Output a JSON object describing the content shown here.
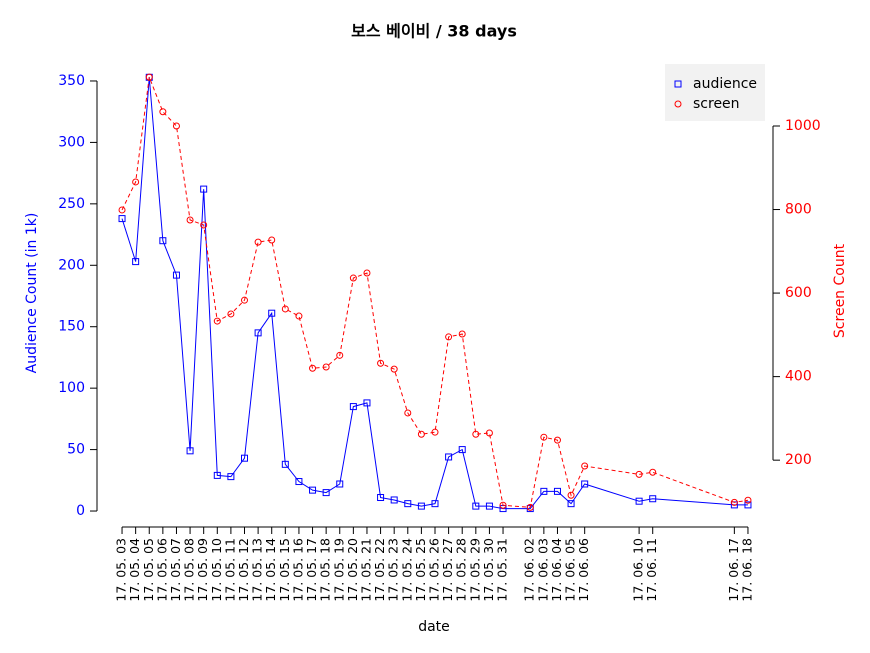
{
  "chart_data": {
    "type": "line",
    "title": "보스 베이비 / 38 days",
    "x_label": "date",
    "y_label": "Audience Count (in 1k)",
    "y2_label": "Screen Count",
    "x": [
      "17. 05. 03",
      "17. 05. 04",
      "17. 05. 05",
      "17. 05. 06",
      "17. 05. 07",
      "17. 05. 08",
      "17. 05. 09",
      "17. 05. 10",
      "17. 05. 11",
      "17. 05. 12",
      "17. 05. 13",
      "17. 05. 14",
      "17. 05. 15",
      "17. 05. 16",
      "17. 05. 17",
      "17. 05. 18",
      "17. 05. 19",
      "17. 05. 20",
      "17. 05. 21",
      "17. 05. 22",
      "17. 05. 23",
      "17. 05. 24",
      "17. 05. 25",
      "17. 05. 26",
      "17. 05. 27",
      "17. 05. 28",
      "17. 05. 29",
      "17. 05. 30",
      "17. 05. 31",
      "17. 06. 02",
      "17. 06. 03",
      "17. 06. 04",
      "17. 06. 05",
      "17. 06. 06",
      "17. 06. 10",
      "17. 06. 11",
      "17. 06. 17",
      "17. 06. 18"
    ],
    "series": [
      {
        "name": "audience",
        "color": "#0000ff",
        "axis": "y",
        "values": [
          238,
          203,
          353,
          220,
          192,
          49,
          262,
          29,
          28,
          43,
          145,
          161,
          38,
          24,
          17,
          15,
          22,
          85,
          88,
          11,
          9,
          6,
          4,
          6,
          44,
          50,
          4,
          4,
          2,
          2,
          16,
          16,
          6,
          22,
          8,
          10,
          5,
          5
        ]
      },
      {
        "name": "screen",
        "color": "#ff0000",
        "axis": "y2",
        "values": [
          799,
          866,
          1117,
          1034,
          1000,
          775,
          763,
          533,
          550,
          583,
          722,
          727,
          562,
          545,
          420,
          423,
          451,
          636,
          648,
          432,
          418,
          313,
          262,
          267,
          495,
          502,
          262,
          265,
          92,
          87,
          255,
          248,
          116,
          186,
          166,
          171,
          99,
          104
        ]
      }
    ],
    "ylim": [
      -13,
      363
    ],
    "yticks": [
      0,
      50,
      100,
      150,
      200,
      250,
      300,
      350
    ],
    "y2lim": [
      40,
      1146
    ],
    "y2ticks": [
      200,
      400,
      600,
      800,
      1000
    ],
    "legend": "top-right"
  }
}
